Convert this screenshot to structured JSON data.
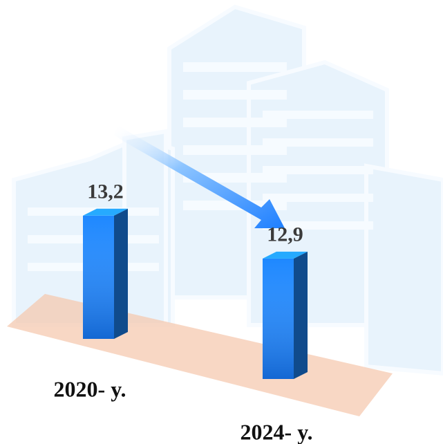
{
  "chart_data": {
    "type": "bar3d",
    "categories": [
      "2020- y.",
      "2024- y."
    ],
    "values": [
      13.2,
      12.9
    ],
    "value_labels": [
      "13,2",
      "12,9"
    ],
    "color": "#1e88ff"
  }
}
